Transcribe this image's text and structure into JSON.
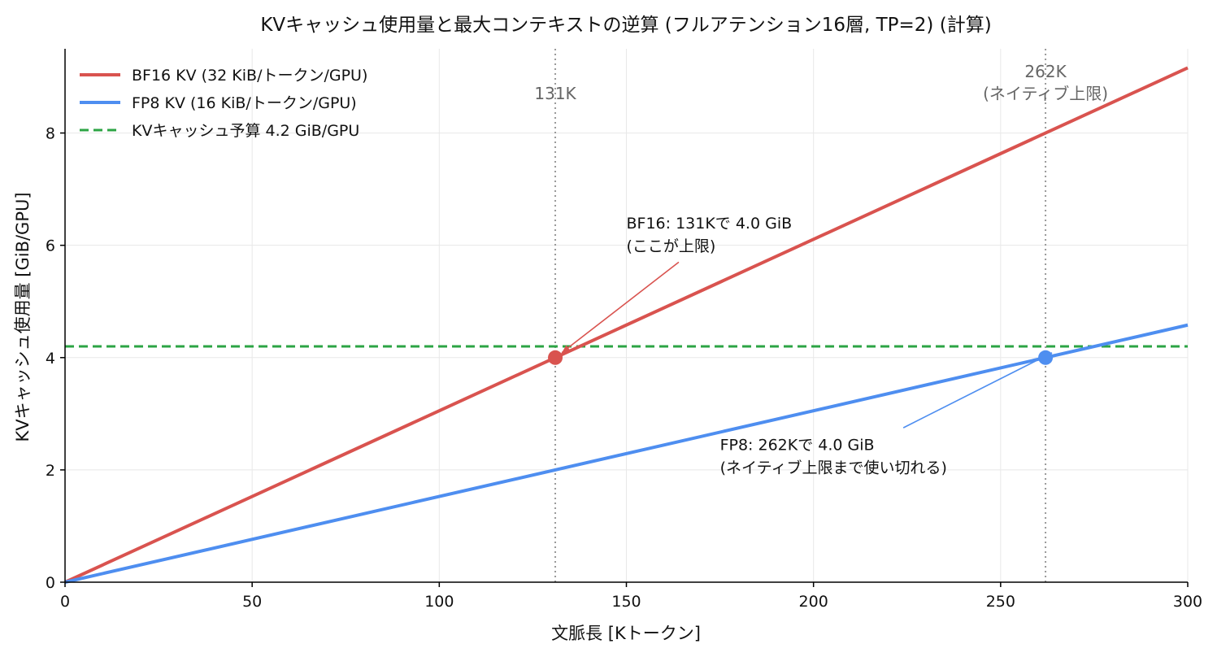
{
  "chart_data": {
    "type": "line",
    "title": "KVキャッシュ使用量と最大コンテキストの逆算 (フルアテンション16層, TP=2) (計算)",
    "xlabel": "文脈長 [Kトークン]",
    "ylabel": "KVキャッシュ使用量 [GiB/GPU]",
    "xlim": [
      0,
      300
    ],
    "ylim": [
      0,
      9.5
    ],
    "xticks": [
      0,
      50,
      100,
      150,
      200,
      250,
      300
    ],
    "yticks": [
      0,
      2,
      4,
      6,
      8
    ],
    "xtick_labels": [
      "0",
      "50",
      "100",
      "150",
      "200",
      "250",
      "300"
    ],
    "ytick_labels": [
      "0",
      "2",
      "4",
      "6",
      "8"
    ],
    "grid": true,
    "legend_position": "top-left",
    "series": [
      {
        "name": "BF16 KV (32 KiB/トークン/GPU)",
        "color": "#d9534f",
        "style": "solid",
        "x": [
          0,
          300
        ],
        "y": [
          0,
          9.16
        ]
      },
      {
        "name": "FP8 KV (16 KiB/トークン/GPU)",
        "color": "#4e8ef0",
        "style": "solid",
        "x": [
          0,
          300
        ],
        "y": [
          0,
          4.58
        ]
      }
    ],
    "budget_line": {
      "name": "KVキャッシュ予算 4.2 GiB/GPU",
      "value": 4.2,
      "color": "#2ca444",
      "style": "dashed"
    },
    "vertical_lines": [
      {
        "x": 131,
        "label": "131K"
      },
      {
        "x": 262,
        "label": "262K\n(ネイティブ上限)"
      }
    ],
    "markers": [
      {
        "x": 131,
        "y": 4.0,
        "color": "#d9534f"
      },
      {
        "x": 262,
        "y": 4.0,
        "color": "#4e8ef0"
      }
    ],
    "annotations": [
      {
        "text": "BF16: 131Kで 4.0 GiB\n(ここが上限)",
        "target_x": 131,
        "target_y": 4.0,
        "text_x": 150,
        "text_y": 6.3,
        "arrow_from_x": 164,
        "arrow_from_y": 5.7,
        "color": "#d9534f"
      },
      {
        "text": "FP8: 262Kで 4.0 GiB\n(ネイティブ上限まで使い切れる)",
        "target_x": 262,
        "target_y": 4.0,
        "text_x": 175,
        "text_y": 2.35,
        "arrow_from_x": 224,
        "arrow_from_y": 2.75,
        "color": "#4e8ef0"
      }
    ]
  }
}
